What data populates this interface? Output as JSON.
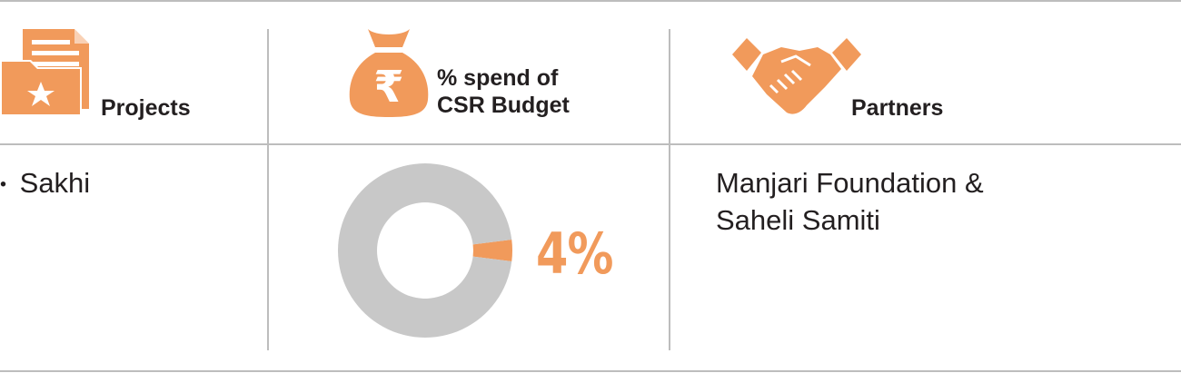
{
  "colors": {
    "accent": "#f19a5b",
    "ring": "#c8c8c8",
    "rule": "#bdbdbd",
    "text": "#231f20"
  },
  "header": {
    "projects": {
      "icon": "folder-star-icon",
      "label": "Projects"
    },
    "spend": {
      "icon": "rupee-money-bag-icon",
      "label_line1": "% spend of",
      "label_line2": "CSR Budget"
    },
    "partners": {
      "icon": "handshake-icon",
      "label": "Partners"
    }
  },
  "body": {
    "projects": [
      {
        "bullet": "•",
        "name": "Sakhi"
      }
    ],
    "partners": {
      "line1": "Manjari Foundation &",
      "line2": "Saheli Samiti"
    }
  },
  "chart_data": {
    "type": "pie",
    "style": "donut",
    "values": [
      4,
      96
    ],
    "label": "4%",
    "colors": [
      "#f19a5b",
      "#c8c8c8"
    ]
  }
}
